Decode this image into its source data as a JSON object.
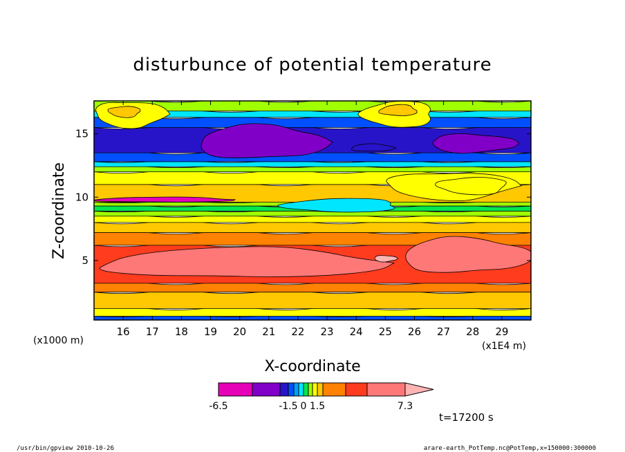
{
  "chart_data": {
    "type": "heatmap",
    "title": "disturbunce of potential temperature",
    "xlabel": "X-coordinate",
    "ylabel": "Z-coordinate",
    "x_unit_label": "(x1E4 m)",
    "y_unit_label": "(x1000 m)",
    "x_range": [
      15,
      30
    ],
    "y_range": [
      0.3,
      17.6
    ],
    "x_ticks": [
      "16",
      "17",
      "18",
      "19",
      "20",
      "21",
      "22",
      "23",
      "24",
      "25",
      "26",
      "27",
      "28",
      "29"
    ],
    "y_ticks": [
      "5",
      "10",
      "15"
    ],
    "colorbar": {
      "levels": [
        -6.5,
        -4.5,
        -3.0,
        -1.5,
        -1.0,
        -0.5,
        0,
        0.5,
        1.0,
        1.5,
        2.5,
        4.0,
        5.5,
        7.3
      ],
      "tick_labels": [
        "-6.5",
        "-1.5",
        "0",
        "1.5",
        "7.3"
      ],
      "colors": [
        "#e600b8",
        "#8000c8",
        "#2814c8",
        "#0050ff",
        "#00a0ff",
        "#00e6ff",
        "#00e650",
        "#a0ff00",
        "#ffff00",
        "#ffc800",
        "#ff8200",
        "#ff3c1e",
        "#ff7878",
        "#ffb4b4"
      ]
    },
    "bands": [
      {
        "z_bottom": 0.3,
        "z_top": 0.6,
        "level": -1.5
      },
      {
        "z_bottom": 0.6,
        "z_top": 1.2,
        "level": 1.0
      },
      {
        "z_bottom": 1.2,
        "z_top": 2.5,
        "level": 1.5
      },
      {
        "z_bottom": 2.5,
        "z_top": 3.2,
        "level": 2.5
      },
      {
        "z_bottom": 3.2,
        "z_top": 6.2,
        "level": 4.0
      },
      {
        "z_bottom": 6.2,
        "z_top": 7.2,
        "level": 2.5
      },
      {
        "z_bottom": 7.2,
        "z_top": 8.0,
        "level": 1.5
      },
      {
        "z_bottom": 8.0,
        "z_top": 8.5,
        "level": 1.0
      },
      {
        "z_bottom": 8.5,
        "z_top": 8.9,
        "level": 0.5
      },
      {
        "z_bottom": 8.9,
        "z_top": 9.3,
        "level": 0
      },
      {
        "z_bottom": 9.3,
        "z_top": 9.6,
        "level": 0.5
      },
      {
        "z_bottom": 9.6,
        "z_top": 11.0,
        "level": 1.5
      },
      {
        "z_bottom": 11.0,
        "z_top": 12.0,
        "level": 1.0
      },
      {
        "z_bottom": 12.0,
        "z_top": 12.4,
        "level": 0.5
      },
      {
        "z_bottom": 12.4,
        "z_top": 12.8,
        "level": -0.5
      },
      {
        "z_bottom": 12.8,
        "z_top": 13.5,
        "level": -1.5
      },
      {
        "z_bottom": 13.5,
        "z_top": 15.5,
        "level": -3.0
      },
      {
        "z_bottom": 15.5,
        "z_top": 16.3,
        "level": -1.5
      },
      {
        "z_bottom": 16.3,
        "z_top": 16.8,
        "level": -0.5
      },
      {
        "z_bottom": 16.8,
        "z_top": 17.6,
        "level": 0.5
      }
    ],
    "features": [
      {
        "x": [
          15.2,
          25.0
        ],
        "z": [
          3.6,
          6.0
        ],
        "level": 5.5
      },
      {
        "x": [
          25.5,
          30.0
        ],
        "z": [
          4.0,
          6.8
        ],
        "level": 5.5
      },
      {
        "x": [
          24.6,
          25.4
        ],
        "z": [
          4.9,
          5.4
        ],
        "level": 7.3
      },
      {
        "x": [
          25.0,
          29.5
        ],
        "z": [
          9.8,
          12.0
        ],
        "level": 1.0
      },
      {
        "x": [
          26.8,
          29.2
        ],
        "z": [
          10.2,
          11.6
        ],
        "level": 1.0
      },
      {
        "x": [
          21.5,
          25.5
        ],
        "z": [
          8.8,
          9.9
        ],
        "level": -0.5
      },
      {
        "x": [
          15.0,
          19.8
        ],
        "z": [
          9.6,
          10.0
        ],
        "level": -6.5
      },
      {
        "x": [
          18.5,
          23.0
        ],
        "z": [
          13.0,
          15.7
        ],
        "level": -4.5
      },
      {
        "x": [
          26.5,
          29.5
        ],
        "z": [
          13.5,
          15.0
        ],
        "level": -4.5
      },
      {
        "x": [
          15.0,
          17.5
        ],
        "z": [
          15.5,
          17.6
        ],
        "level": 1.0
      },
      {
        "x": [
          15.5,
          16.6
        ],
        "z": [
          16.3,
          17.2
        ],
        "level": 1.5
      },
      {
        "x": [
          24.2,
          26.7
        ],
        "z": [
          15.5,
          17.6
        ],
        "level": 1.0
      },
      {
        "x": [
          24.8,
          26.1
        ],
        "z": [
          16.4,
          17.3
        ],
        "level": 1.5
      },
      {
        "x": [
          23.8,
          25.3
        ],
        "z": [
          13.6,
          14.2
        ],
        "level": -3.0
      }
    ]
  },
  "time_label": "t=17200 s",
  "footer": {
    "left": "/usr/bin/gpview   2010-10-26",
    "right": "arare-earth_PotTemp.nc@PotTemp,x=150000:300000"
  }
}
